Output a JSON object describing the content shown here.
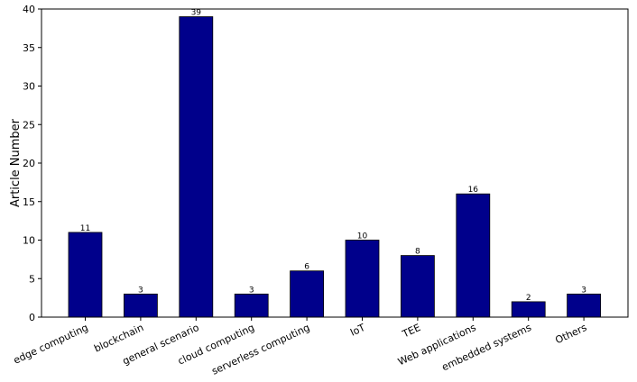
{
  "chart_data": {
    "type": "bar",
    "title": "",
    "xlabel": "",
    "ylabel": "Article Number",
    "ylim": [
      0,
      40
    ],
    "yticks": [
      0,
      5,
      10,
      15,
      20,
      25,
      30,
      35,
      40
    ],
    "grid": false,
    "categories": [
      "edge computing",
      "blockchain",
      "general scenario",
      "cloud computing",
      "serverless computing",
      "IoT",
      "TEE",
      "Web applications",
      "embedded systems",
      "Others"
    ],
    "values": [
      11,
      3,
      39,
      3,
      6,
      10,
      8,
      16,
      2,
      3
    ],
    "bar_color": "#00008b"
  }
}
